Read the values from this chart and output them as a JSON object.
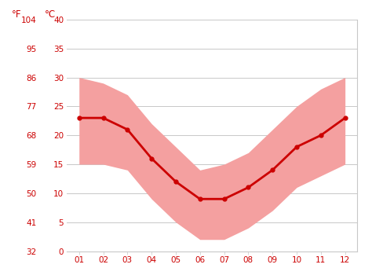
{
  "months": [
    1,
    2,
    3,
    4,
    5,
    6,
    7,
    8,
    9,
    10,
    11,
    12
  ],
  "month_labels": [
    "01",
    "02",
    "03",
    "04",
    "05",
    "06",
    "07",
    "08",
    "09",
    "10",
    "11",
    "12"
  ],
  "mean_temp_c": [
    23,
    23,
    21,
    16,
    12,
    9,
    9,
    11,
    14,
    18,
    20,
    23
  ],
  "band_upper_c": [
    30,
    29,
    27,
    22,
    18,
    14,
    15,
    17,
    21,
    25,
    28,
    30
  ],
  "band_lower_c": [
    15,
    15,
    14,
    9,
    5,
    2,
    2,
    4,
    7,
    11,
    13,
    15
  ],
  "ylim_c": [
    0,
    40
  ],
  "yticks_c": [
    0,
    5,
    10,
    15,
    20,
    25,
    30,
    35,
    40
  ],
  "yticks_f": [
    32,
    41,
    50,
    59,
    68,
    77,
    86,
    95,
    104
  ],
  "line_color": "#cc0000",
  "band_color": "#f4a0a0",
  "grid_color": "#c8c8c8",
  "tick_color": "#cc0000",
  "background_color": "#ffffff",
  "figsize": [
    4.74,
    3.55
  ],
  "dpi": 100,
  "label_fontsize": 7.5,
  "header_fontsize": 8.5
}
